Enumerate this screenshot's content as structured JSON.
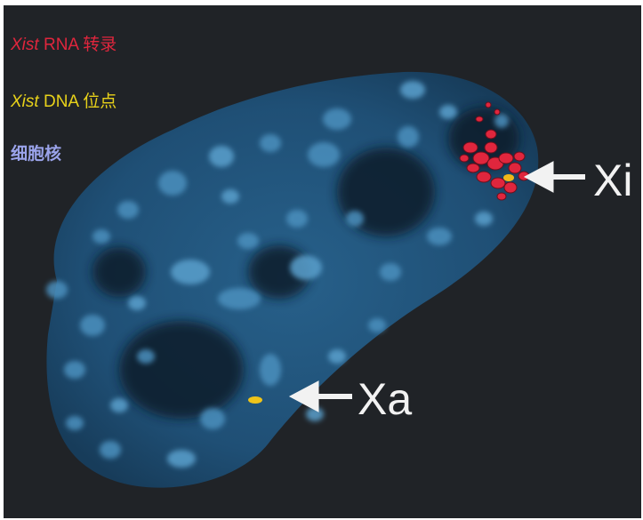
{
  "legend": {
    "rna": {
      "prefix": "Xist",
      "suffix": " RNA 转录",
      "color": "#e0263d"
    },
    "dna": {
      "prefix": "Xist",
      "suffix": " DNA 位点",
      "color": "#e8d21a"
    },
    "nucleus": {
      "text": "细胞核",
      "color": "#9aa3ea"
    }
  },
  "annotations": {
    "xi_label": "Xi",
    "xa_label": "Xa"
  },
  "colors": {
    "background": "#202327",
    "nucleus_fill": "#1d4a6b",
    "chromatin": "#4a8fbd",
    "rna_signal": "#e0263d",
    "dna_signal": "#e8d21a",
    "arrow": "#f2f2f2"
  }
}
